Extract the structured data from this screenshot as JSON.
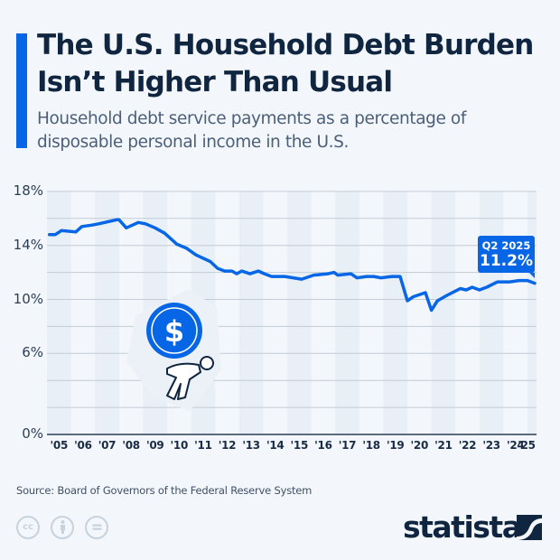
{
  "header": {
    "title": "The U.S. Household Debt Burden Isn’t Higher Than Usual",
    "subtitle": "Household debt service payments as a percentage of disposable personal income in the U.S."
  },
  "callout": {
    "period": "Q2 2025",
    "value": "11.2%"
  },
  "footer": {
    "source": "Source: Board of Governors of the Federal Reserve System",
    "license_icons": [
      "cc-icon",
      "attribution-icon",
      "no-derivatives-icon"
    ],
    "brand": "statista"
  },
  "colors": {
    "line": "#0666e5",
    "title": "#0f2540",
    "band": "#e9eff6",
    "grid": "#c3cbd6"
  },
  "chart_data": {
    "type": "line",
    "title": "The U.S. Household Debt Burden Isn’t Higher Than Usual",
    "subtitle": "Household debt service payments as a percentage of disposable personal income in the U.S.",
    "xlabel": "",
    "ylabel": "",
    "ylim": [
      0,
      18
    ],
    "yticks": [
      0,
      6,
      10,
      14,
      18
    ],
    "ytick_labels": [
      "0%",
      "6%",
      "10%",
      "14%",
      "18%"
    ],
    "grid_every": 2,
    "x_tick_labels": [
      "'05",
      "'06",
      "'07",
      "'08",
      "'09",
      "'10",
      "'11",
      "'12",
      "'13",
      "'14",
      "'15",
      "'16",
      "'17",
      "'18",
      "'19",
      "'20",
      "'21",
      "'22",
      "'23",
      "'24",
      "'25"
    ],
    "series": [
      {
        "name": "Debt service payments (% of disposable income)",
        "x": [
          2005.1,
          2005.35,
          2005.6,
          2006.2,
          2006.45,
          2006.85,
          2007.15,
          2007.9,
          2008.0,
          2008.3,
          2008.8,
          2009.1,
          2009.5,
          2009.9,
          2010.4,
          2010.8,
          2011.2,
          2011.8,
          2012.1,
          2012.4,
          2012.7,
          2012.9,
          2013.1,
          2013.45,
          2013.8,
          2014.05,
          2014.35,
          2014.9,
          2015.6,
          2016.1,
          2016.7,
          2016.95,
          2017.1,
          2017.65,
          2017.9,
          2018.3,
          2018.6,
          2018.9,
          2019.35,
          2019.7,
          2020.0,
          2020.25,
          2020.75,
          2021.0,
          2021.25,
          2021.65,
          2022.2,
          2022.45,
          2022.7,
          2023.0,
          2023.3,
          2023.75,
          2024.25,
          2024.65,
          2025.0,
          2025.3
        ],
        "values": [
          14.8,
          14.8,
          15.1,
          15.0,
          15.4,
          15.5,
          15.6,
          15.9,
          15.9,
          15.3,
          15.7,
          15.6,
          15.3,
          14.9,
          14.1,
          13.8,
          13.3,
          12.8,
          12.3,
          12.1,
          12.1,
          11.9,
          12.1,
          11.9,
          12.1,
          11.9,
          11.7,
          11.7,
          11.5,
          11.8,
          11.9,
          12.0,
          11.8,
          11.9,
          11.6,
          11.7,
          11.7,
          11.6,
          11.7,
          11.7,
          9.9,
          10.2,
          10.5,
          9.2,
          9.9,
          10.3,
          10.8,
          10.7,
          10.9,
          10.7,
          10.9,
          11.3,
          11.3,
          11.4,
          11.4,
          11.2
        ],
        "color": "#0666e5"
      }
    ],
    "annotations": [
      {
        "label": "Q2 2025",
        "value": "11.2%"
      }
    ],
    "legend": "none"
  }
}
